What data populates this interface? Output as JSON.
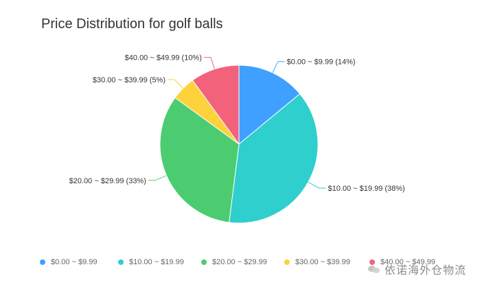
{
  "chart_data": {
    "type": "pie",
    "title": "Price Distribution for golf balls",
    "slices": [
      {
        "category": "$0.00 ~ $9.99",
        "percent": 14,
        "label": "$0.00 ~ $9.99 (14%)",
        "color": "#3fa0ff"
      },
      {
        "category": "$10.00 ~ $19.99",
        "percent": 38,
        "label": "$10.00 ~ $19.99 (38%)",
        "color": "#2fcfcd"
      },
      {
        "category": "$20.00 ~ $29.99",
        "percent": 33,
        "label": "$20.00 ~ $29.99 (33%)",
        "color": "#4ccc70"
      },
      {
        "category": "$30.00 ~ $39.99",
        "percent": 5,
        "label": "$30.00 ~ $39.99 (5%)",
        "color": "#fdd23b"
      },
      {
        "category": "$40.00 ~ $49.99",
        "percent": 10,
        "label": "$40.00 ~ $49.99 (10%)",
        "color": "#f2637b"
      }
    ],
    "legend_position": "bottom"
  },
  "watermark": {
    "text": "依诺海外仓物流",
    "icon": "wechat-icon"
  }
}
